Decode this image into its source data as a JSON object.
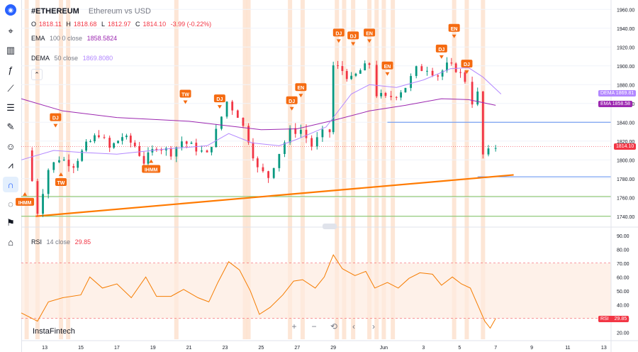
{
  "header": {
    "symbol": "#ETHEREUM",
    "description": "Ethereum vs USD",
    "ohlc": {
      "o_label": "O",
      "o": "1818.11",
      "h_label": "H",
      "h": "1818.68",
      "l_label": "L",
      "l": "1812.97",
      "c_label": "C",
      "c": "1814.10",
      "change": "-3.99 (-0.22%)"
    },
    "ema": {
      "name": "EMA",
      "params": "100 0 close",
      "value": "1858.5824"
    },
    "dema": {
      "name": "DEMA",
      "params": "50 close",
      "value": "1869.8080"
    },
    "collapse_icon": "chevron-up-icon"
  },
  "rsi_legend": {
    "name": "RSI",
    "params": "14 close",
    "value": "29.85"
  },
  "watermark": "InstaFintech",
  "price_tags": {
    "dema": {
      "label": "DEMA",
      "value": "1869.81"
    },
    "ema": {
      "label": "EMA",
      "value": "1858.58"
    },
    "last": {
      "value": "1814.10"
    },
    "rsi": {
      "label": "RSI",
      "value": "29.85"
    }
  },
  "toolbar": [
    "logo-icon",
    "crosshair-icon",
    "candle-type-icon",
    "indicators-icon",
    "trendline-icon",
    "fib-icon",
    "brush-icon",
    "emoji-icon",
    "pattern-icon",
    "magnet-icon",
    "eye-icon",
    "alert-icon",
    "home-icon"
  ],
  "bottom_controls": [
    "+",
    "−",
    "⟲",
    "‹",
    "›"
  ],
  "colors": {
    "up": "#089981",
    "down": "#f23645",
    "ema": "#9c27b0",
    "dema": "#b388ff",
    "trend": "#ff7a00",
    "signal": "#f56b11",
    "highlight": "#fde0cc",
    "hline_blue": "#5b8def",
    "hline_green": "#7cbf5c",
    "rsi": "#f57c00"
  },
  "chart_data": {
    "type": "candlestick",
    "price_axis": {
      "min": 1730,
      "max": 1970,
      "ticks": [
        1740,
        1760,
        1780,
        1800,
        1820,
        1840,
        1860,
        1880,
        1900,
        1920,
        1940,
        1960
      ]
    },
    "rsi_axis": {
      "min": 15,
      "max": 95,
      "ticks": [
        20,
        30,
        40,
        50,
        60,
        70,
        80,
        90
      ],
      "overbought": 70,
      "oversold": 30
    },
    "x_ticks": [
      "13",
      "15",
      "17",
      "19",
      "21",
      "23",
      "25",
      "27",
      "29",
      "Jun",
      "3",
      "5",
      "7",
      "9",
      "11",
      "13"
    ],
    "x_tick_days": [
      0,
      2,
      4,
      6,
      8,
      10,
      12,
      14,
      16,
      18.8,
      21,
      23,
      25,
      27,
      29,
      31
    ],
    "time_range_days": [
      -1.3,
      31.4
    ],
    "trendline": {
      "from": {
        "day": -0.5,
        "price": 1740
      },
      "to": {
        "day": 26,
        "price": 1784
      }
    },
    "horizontal_lines": [
      {
        "price": 1840,
        "from_day": 19,
        "color": "blue"
      },
      {
        "price": 1782,
        "from_day": 24,
        "color": "blue"
      },
      {
        "price": 1761,
        "from_day": -1.3,
        "color": "green"
      },
      {
        "price": 1740,
        "from_day": -1.3,
        "color": "green"
      }
    ],
    "ohlc_anchors": [
      {
        "day": -1.0,
        "price": 1810
      },
      {
        "day": -0.4,
        "price": 1745
      },
      {
        "day": 0.2,
        "price": 1790
      },
      {
        "day": 0.8,
        "price": 1802
      },
      {
        "day": 1.6,
        "price": 1795
      },
      {
        "day": 2.3,
        "price": 1815
      },
      {
        "day": 3.0,
        "price": 1828
      },
      {
        "day": 3.6,
        "price": 1812
      },
      {
        "day": 4.3,
        "price": 1825
      },
      {
        "day": 5.0,
        "price": 1815
      },
      {
        "day": 5.5,
        "price": 1798
      },
      {
        "day": 6.2,
        "price": 1815
      },
      {
        "day": 7.0,
        "price": 1808
      },
      {
        "day": 7.6,
        "price": 1820
      },
      {
        "day": 8.4,
        "price": 1812
      },
      {
        "day": 9.0,
        "price": 1805
      },
      {
        "day": 9.5,
        "price": 1830
      },
      {
        "day": 10.1,
        "price": 1862
      },
      {
        "day": 10.7,
        "price": 1848
      },
      {
        "day": 11.3,
        "price": 1822
      },
      {
        "day": 11.8,
        "price": 1790
      },
      {
        "day": 12.4,
        "price": 1782
      },
      {
        "day": 13.0,
        "price": 1808
      },
      {
        "day": 13.6,
        "price": 1830
      },
      {
        "day": 14.2,
        "price": 1832
      },
      {
        "day": 14.8,
        "price": 1815
      },
      {
        "day": 15.4,
        "price": 1828
      },
      {
        "day": 15.8,
        "price": 1830
      },
      {
        "day": 16.0,
        "price": 1900
      },
      {
        "day": 16.5,
        "price": 1895
      },
      {
        "day": 17.0,
        "price": 1885
      },
      {
        "day": 17.5,
        "price": 1895
      },
      {
        "day": 18.0,
        "price": 1902
      },
      {
        "day": 18.4,
        "price": 1870
      },
      {
        "day": 18.9,
        "price": 1865
      },
      {
        "day": 19.5,
        "price": 1870
      },
      {
        "day": 20.0,
        "price": 1878
      },
      {
        "day": 20.6,
        "price": 1896
      },
      {
        "day": 21.2,
        "price": 1898
      },
      {
        "day": 21.8,
        "price": 1890
      },
      {
        "day": 22.3,
        "price": 1900
      },
      {
        "day": 22.8,
        "price": 1897
      },
      {
        "day": 23.3,
        "price": 1885
      },
      {
        "day": 23.7,
        "price": 1862
      },
      {
        "day": 24.0,
        "price": 1870
      },
      {
        "day": 24.3,
        "price": 1805
      },
      {
        "day": 24.6,
        "price": 1808
      },
      {
        "day": 25.0,
        "price": 1814
      }
    ],
    "ema_100": [
      {
        "day": -1.3,
        "price": 1865
      },
      {
        "day": 1,
        "price": 1852
      },
      {
        "day": 4,
        "price": 1845
      },
      {
        "day": 8,
        "price": 1841
      },
      {
        "day": 12,
        "price": 1832
      },
      {
        "day": 14,
        "price": 1833
      },
      {
        "day": 16,
        "price": 1842
      },
      {
        "day": 18,
        "price": 1852
      },
      {
        "day": 20,
        "price": 1858
      },
      {
        "day": 22,
        "price": 1865
      },
      {
        "day": 23.5,
        "price": 1864
      },
      {
        "day": 25,
        "price": 1858
      }
    ],
    "dema_50": [
      {
        "day": -1.3,
        "price": 1800
      },
      {
        "day": 0.5,
        "price": 1810
      },
      {
        "day": 2,
        "price": 1808
      },
      {
        "day": 4,
        "price": 1806
      },
      {
        "day": 7,
        "price": 1812
      },
      {
        "day": 9,
        "price": 1815
      },
      {
        "day": 10.2,
        "price": 1828
      },
      {
        "day": 11.5,
        "price": 1818
      },
      {
        "day": 13,
        "price": 1815
      },
      {
        "day": 14,
        "price": 1822
      },
      {
        "day": 15.6,
        "price": 1835
      },
      {
        "day": 17,
        "price": 1870
      },
      {
        "day": 18,
        "price": 1880
      },
      {
        "day": 19.5,
        "price": 1877
      },
      {
        "day": 21,
        "price": 1885
      },
      {
        "day": 22.5,
        "price": 1897
      },
      {
        "day": 23.5,
        "price": 1898
      },
      {
        "day": 24.3,
        "price": 1888
      },
      {
        "day": 25.3,
        "price": 1870
      }
    ],
    "rsi_14": [
      {
        "day": -1.3,
        "price": 34
      },
      {
        "day": -0.4,
        "price": 28
      },
      {
        "day": 0.2,
        "price": 42
      },
      {
        "day": 1.0,
        "price": 45
      },
      {
        "day": 2.0,
        "price": 47
      },
      {
        "day": 2.5,
        "price": 60
      },
      {
        "day": 3.2,
        "price": 52
      },
      {
        "day": 4.0,
        "price": 55
      },
      {
        "day": 4.8,
        "price": 45
      },
      {
        "day": 5.6,
        "price": 60
      },
      {
        "day": 6.2,
        "price": 46
      },
      {
        "day": 7.0,
        "price": 46
      },
      {
        "day": 7.7,
        "price": 51
      },
      {
        "day": 8.5,
        "price": 45
      },
      {
        "day": 9.1,
        "price": 42
      },
      {
        "day": 9.6,
        "price": 56
      },
      {
        "day": 10.2,
        "price": 71
      },
      {
        "day": 10.8,
        "price": 65
      },
      {
        "day": 11.4,
        "price": 50
      },
      {
        "day": 11.9,
        "price": 33
      },
      {
        "day": 12.5,
        "price": 38
      },
      {
        "day": 13.2,
        "price": 47
      },
      {
        "day": 13.8,
        "price": 57
      },
      {
        "day": 14.3,
        "price": 58
      },
      {
        "day": 15.0,
        "price": 52
      },
      {
        "day": 15.5,
        "price": 60
      },
      {
        "day": 16.0,
        "price": 76
      },
      {
        "day": 16.5,
        "price": 66
      },
      {
        "day": 17.2,
        "price": 61
      },
      {
        "day": 17.8,
        "price": 64
      },
      {
        "day": 18.3,
        "price": 52
      },
      {
        "day": 19.0,
        "price": 56
      },
      {
        "day": 19.6,
        "price": 52
      },
      {
        "day": 20.2,
        "price": 59
      },
      {
        "day": 20.8,
        "price": 63
      },
      {
        "day": 21.5,
        "price": 62
      },
      {
        "day": 22.0,
        "price": 54
      },
      {
        "day": 22.6,
        "price": 60
      },
      {
        "day": 23.1,
        "price": 55
      },
      {
        "day": 23.6,
        "price": 52
      },
      {
        "day": 24.0,
        "price": 40
      },
      {
        "day": 24.4,
        "price": 28
      },
      {
        "day": 24.7,
        "price": 23
      },
      {
        "day": 25.0,
        "price": 30
      }
    ],
    "highlight_days": [
      -1.0,
      -0.4,
      0.9,
      1.3,
      7.3,
      11.1,
      11.3,
      13.6,
      14.3,
      16.2,
      16.6,
      17.1,
      18.0,
      18.4,
      18.8,
      19.3,
      22.7,
      23.4,
      24.3
    ],
    "signals": [
      {
        "label": "IHMM",
        "day": -1.1,
        "price": 1755,
        "dir": "up"
      },
      {
        "label": "DJ",
        "day": 0.6,
        "price": 1845,
        "dir": "down"
      },
      {
        "label": "TW",
        "day": 0.9,
        "price": 1776,
        "dir": "up"
      },
      {
        "label": "IHMM",
        "day": 5.9,
        "price": 1790,
        "dir": "up"
      },
      {
        "label": "TW",
        "day": 7.8,
        "price": 1870,
        "dir": "down"
      },
      {
        "label": "DJ",
        "day": 9.7,
        "price": 1865,
        "dir": "down"
      },
      {
        "label": "DJ",
        "day": 13.7,
        "price": 1863,
        "dir": "down"
      },
      {
        "label": "EN",
        "day": 14.2,
        "price": 1877,
        "dir": "down"
      },
      {
        "label": "DJ",
        "day": 16.3,
        "price": 1935,
        "dir": "down"
      },
      {
        "label": "DJ",
        "day": 17.1,
        "price": 1932,
        "dir": "down"
      },
      {
        "label": "EN",
        "day": 18.0,
        "price": 1935,
        "dir": "down"
      },
      {
        "label": "EN",
        "day": 19.0,
        "price": 1900,
        "dir": "down"
      },
      {
        "label": "DJ",
        "day": 22.0,
        "price": 1918,
        "dir": "down"
      },
      {
        "label": "EN",
        "day": 22.7,
        "price": 1940,
        "dir": "down"
      },
      {
        "label": "DJ",
        "day": 23.4,
        "price": 1902,
        "dir": "down"
      }
    ]
  }
}
